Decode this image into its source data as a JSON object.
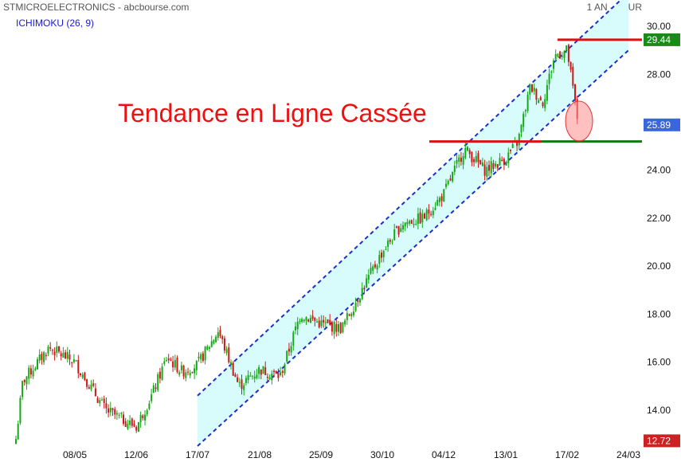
{
  "header": {
    "title": "STMICROELECTRONICS - abcbourse.com",
    "period": "1 AN - JOUR",
    "indicator": "ICHIMOKU (26, 9)"
  },
  "chart_data": {
    "type": "candlestick",
    "ylim": [
      12.5,
      30.5
    ],
    "grid": false,
    "yticks": [
      14,
      16,
      18,
      20,
      22,
      24,
      26,
      28,
      30
    ],
    "ytick_labels": [
      "14.00",
      "16.00",
      "18.00",
      "20.00",
      "22.00",
      "24.00",
      "",
      "28.00",
      "30.00"
    ],
    "x_labels": [
      "08/05",
      "12/06",
      "17/07",
      "21/08",
      "25/09",
      "30/10",
      "04/12",
      "13/01",
      "17/02",
      "24/03"
    ],
    "price_tags": [
      {
        "value": 29.44,
        "label": "29.44",
        "color": "#1a8a1a"
      },
      {
        "value": 25.89,
        "label": "25.89",
        "color": "#3a66dd"
      },
      {
        "value": 12.72,
        "label": "12.72",
        "color": "#cc2222"
      }
    ],
    "annotation": "Tendance en Ligne Cassée",
    "resistance_level": 29.44,
    "support_level": 25.2,
    "channel": {
      "lower_start": {
        "date": "17/07",
        "value": 12.5
      },
      "lower_end": {
        "date": "24/03",
        "value": 29.0
      },
      "upper_start": {
        "date": "17/07",
        "value": 14.6
      },
      "upper_end": {
        "date": "24/03",
        "value": 31.4
      }
    },
    "anchors": [
      {
        "date": "",
        "value": 12.8
      },
      {
        "date": "",
        "value": 15.2
      },
      {
        "date": "",
        "value": 16.6
      },
      {
        "date": "08/05",
        "value": 16.0
      },
      {
        "date": "",
        "value": 14.0
      },
      {
        "date": "12/06",
        "value": 13.3
      },
      {
        "date": "",
        "value": 14.6
      },
      {
        "date": "",
        "value": 16.2
      },
      {
        "date": "",
        "value": 15.6
      },
      {
        "date": "17/07",
        "value": 15.9
      },
      {
        "date": "",
        "value": 17.3
      },
      {
        "date": "",
        "value": 15.0
      },
      {
        "date": "21/08",
        "value": 15.7
      },
      {
        "date": "",
        "value": 15.4
      },
      {
        "date": "",
        "value": 18.0
      },
      {
        "date": "25/09",
        "value": 17.6
      },
      {
        "date": "",
        "value": 17.4
      },
      {
        "date": "",
        "value": 19.0
      },
      {
        "date": "30/10",
        "value": 20.6
      },
      {
        "date": "",
        "value": 21.8
      },
      {
        "date": "",
        "value": 22.0
      },
      {
        "date": "04/12",
        "value": 23.0
      },
      {
        "date": "",
        "value": 24.9
      },
      {
        "date": "",
        "value": 24.0
      },
      {
        "date": "13/01",
        "value": 24.5
      },
      {
        "date": "",
        "value": 25.2
      },
      {
        "date": "",
        "value": 27.5
      },
      {
        "date": "",
        "value": 26.8
      },
      {
        "date": "",
        "value": 28.8
      },
      {
        "date": "17/02",
        "value": 29.0
      },
      {
        "date": "",
        "value": 25.9
      }
    ]
  }
}
